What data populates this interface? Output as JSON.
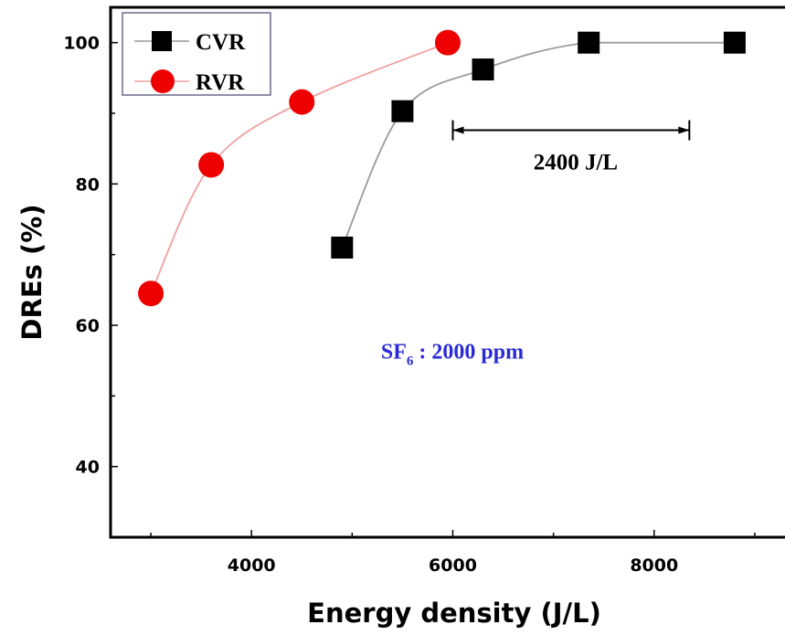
{
  "chart_data": {
    "type": "scatter",
    "xlabel": "Energy density (J/L)",
    "ylabel": "DREs (%)",
    "xlim": [
      2600,
      9500
    ],
    "ylim": [
      30,
      105
    ],
    "x_ticks": [
      4000,
      6000,
      8000
    ],
    "x_tick_labels": [
      "4000",
      "6000",
      "8000"
    ],
    "y_ticks": [
      40,
      60,
      80,
      100
    ],
    "y_tick_labels": [
      "40",
      "60",
      "80",
      "100"
    ],
    "legend_position": "top-left",
    "series": [
      {
        "name": "CVR",
        "marker": "square",
        "marker_color": "#000000",
        "line_color": "#9a9a9a",
        "x": [
          4900,
          5500,
          6300,
          7350,
          8800
        ],
        "y": [
          71,
          90.3,
          96.2,
          100,
          100
        ]
      },
      {
        "name": "RVR",
        "marker": "circle",
        "marker_color": "#ee0000",
        "line_color": "#f0a0a0",
        "x": [
          3000,
          3600,
          4500,
          5950
        ],
        "y": [
          64.5,
          82.7,
          91.6,
          100
        ]
      }
    ],
    "annotations": [
      {
        "text": "2400 J/L",
        "x_start": 6000,
        "x_end": 8350,
        "y": 87.6
      },
      {
        "text_main": "SF",
        "text_sub": "6",
        "text_rest": " : 2000 ppm",
        "color": "#2b2bd6",
        "x": 5350,
        "y": 56.3
      }
    ]
  }
}
